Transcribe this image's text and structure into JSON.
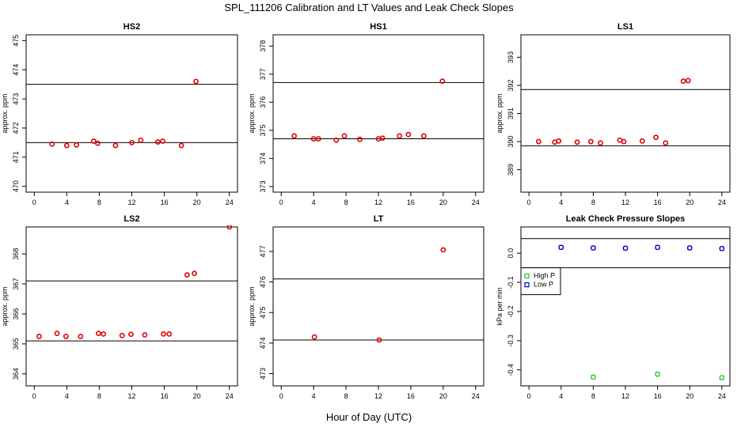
{
  "title": "SPL_111206  Calibration and LT Values and Leak Check Slopes",
  "x_axis_label": "Hour of Day (UTC)",
  "colors": {
    "points": "#e00000",
    "high_p": "#22cc22",
    "low_p": "#0000cc",
    "axes": "#000000"
  },
  "chart_data": [
    {
      "type": "scatter",
      "title": "HS2",
      "ylabel": "approx. ppm",
      "xlim": [
        -1,
        25
      ],
      "ylim": [
        469.8,
        475.2
      ],
      "xticks": [
        0,
        4,
        8,
        12,
        16,
        20,
        24
      ],
      "yticks": [
        470,
        471,
        472,
        473,
        474,
        475
      ],
      "ref_lines": [
        471.5,
        473.5
      ],
      "x": [
        2.2,
        4.0,
        5.2,
        7.3,
        7.8,
        10.0,
        12.0,
        13.1,
        15.2,
        15.8,
        18.1,
        19.9
      ],
      "y": [
        471.45,
        471.4,
        471.42,
        471.55,
        471.48,
        471.4,
        471.5,
        471.58,
        471.52,
        471.55,
        471.4,
        473.6
      ]
    },
    {
      "type": "scatter",
      "title": "HS1",
      "ylabel": "approx. ppm",
      "xlim": [
        -1,
        25
      ],
      "ylim": [
        372.8,
        378.4
      ],
      "xticks": [
        0,
        4,
        8,
        12,
        16,
        20,
        24
      ],
      "yticks": [
        373,
        374,
        375,
        376,
        377,
        378
      ],
      "ref_lines": [
        374.7,
        376.7
      ],
      "x": [
        1.6,
        4.0,
        4.6,
        6.8,
        7.8,
        9.7,
        12.0,
        12.5,
        14.6,
        15.7,
        17.6,
        19.9
      ],
      "y": [
        374.8,
        374.7,
        374.7,
        374.65,
        374.8,
        374.68,
        374.7,
        374.72,
        374.8,
        374.85,
        374.8,
        376.75
      ]
    },
    {
      "type": "scatter",
      "title": "LS1",
      "ylabel": "approx. ppm",
      "xlim": [
        -1,
        25
      ],
      "ylim": [
        388.2,
        393.8
      ],
      "xticks": [
        0,
        4,
        8,
        12,
        16,
        20,
        24
      ],
      "yticks": [
        389,
        390,
        391,
        392,
        393
      ],
      "ref_lines": [
        389.85,
        391.85
      ],
      "x": [
        1.2,
        3.2,
        3.7,
        6.0,
        7.7,
        8.9,
        11.3,
        11.8,
        14.1,
        15.8,
        17.0,
        19.2,
        19.8
      ],
      "y": [
        390.0,
        389.98,
        390.02,
        389.98,
        390.0,
        389.95,
        390.05,
        390.0,
        390.02,
        390.15,
        389.95,
        392.15,
        392.17
      ]
    },
    {
      "type": "scatter",
      "title": "LS2",
      "ylabel": "approx. ppm",
      "xlim": [
        -1,
        25
      ],
      "ylim": [
        363.6,
        368.9
      ],
      "xticks": [
        0,
        4,
        8,
        12,
        16,
        20,
        24
      ],
      "yticks": [
        364,
        365,
        366,
        367,
        368
      ],
      "ref_lines": [
        365.1,
        367.1
      ],
      "x": [
        0.6,
        2.8,
        3.9,
        5.7,
        7.9,
        8.5,
        10.8,
        11.9,
        13.6,
        15.9,
        16.6,
        18.8,
        19.7,
        24.0
      ],
      "y": [
        365.25,
        365.35,
        365.25,
        365.25,
        365.35,
        365.33,
        365.28,
        365.32,
        365.3,
        365.33,
        365.33,
        367.3,
        367.35,
        368.9
      ]
    },
    {
      "type": "scatter",
      "title": "LT",
      "ylabel": "approx. ppm",
      "xlim": [
        -1,
        25
      ],
      "ylim": [
        472.6,
        477.8
      ],
      "xticks": [
        0,
        4,
        8,
        12,
        16,
        20,
        24
      ],
      "yticks": [
        473,
        474,
        475,
        476,
        477
      ],
      "ref_lines": [
        474.1,
        476.1
      ],
      "x": [
        4.1,
        12.1,
        20.0
      ],
      "y": [
        474.2,
        474.1,
        477.05
      ]
    },
    {
      "type": "scatter",
      "title": "Leak Check Pressure Slopes",
      "ylabel": "kPa per min",
      "xlim": [
        -1,
        25
      ],
      "ylim": [
        -0.455,
        0.09
      ],
      "xticks": [
        0,
        4,
        8,
        12,
        16,
        20,
        24
      ],
      "yticks": [
        0.0,
        -0.1,
        -0.2,
        -0.3,
        -0.4
      ],
      "ytick_labels": [
        "0.0",
        "-0.1",
        "-0.2",
        "-0.3",
        "-0.4"
      ],
      "ref_lines": [
        0.05,
        -0.05
      ],
      "legend": {
        "position": "middle-left",
        "entries": [
          "High P",
          "Low P"
        ]
      },
      "series": [
        {
          "name": "High P",
          "x": [
            8,
            16,
            24
          ],
          "y": [
            -0.425,
            -0.415,
            -0.427
          ]
        },
        {
          "name": "Low P",
          "x": [
            4,
            8,
            12,
            16,
            20,
            24
          ],
          "y": [
            0.02,
            0.018,
            0.017,
            0.02,
            0.018,
            0.016
          ]
        }
      ]
    }
  ]
}
